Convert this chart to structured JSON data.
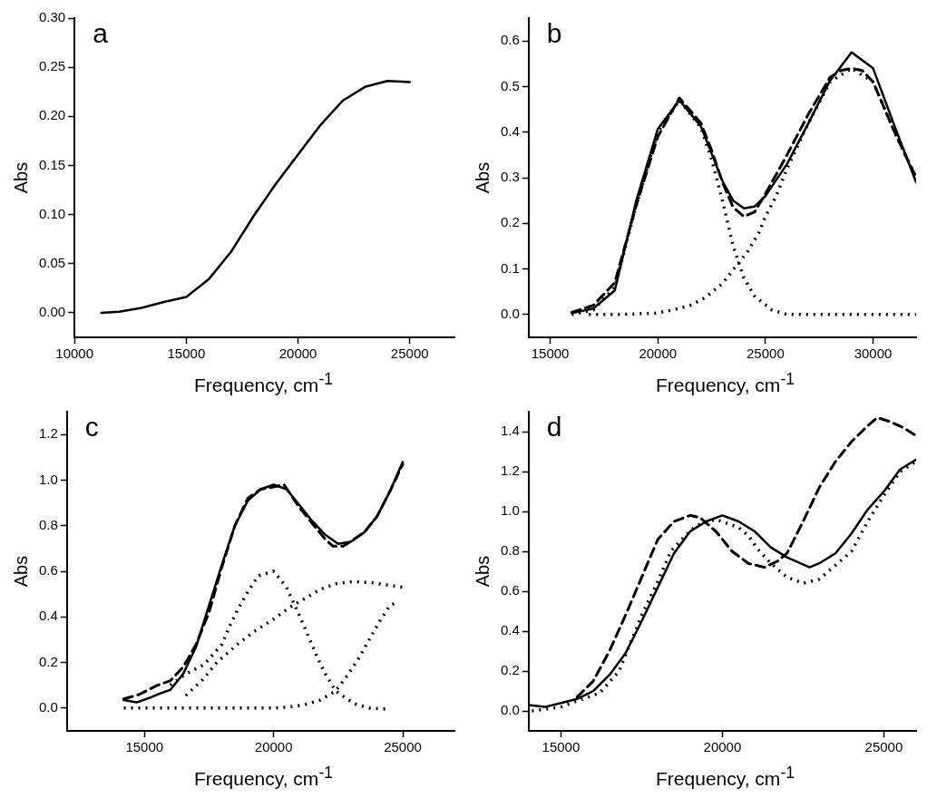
{
  "chart_data": [
    {
      "type": "line",
      "annotations": [
        "a"
      ],
      "xlabel": "Frequency, cm$^{-1}$",
      "ylabel": "Abs",
      "xlim": [
        10000,
        27000
      ],
      "xticks": [
        10000,
        15000,
        20000,
        25000
      ],
      "ylim": [
        -0.025,
        0.3
      ],
      "yticks": [
        {
          "value": 0,
          "label": "0.00"
        },
        0.05,
        {
          "value": 0.1,
          "label": "0.10"
        },
        0.15,
        {
          "value": 0.2,
          "label": "0.20"
        },
        0.25,
        {
          "value": 0.3,
          "label": "0.30"
        }
      ],
      "marker": "none",
      "series": [
        {
          "color": "#000000",
          "line_style": "solid",
          "x": [
            11200,
            12000,
            13000,
            14000,
            15000,
            16000,
            17000,
            18000,
            19000,
            20000,
            21000,
            22000,
            23000,
            24000,
            25000
          ],
          "values": [
            0.0,
            0.001,
            0.005,
            0.011,
            0.016,
            0.034,
            0.062,
            0.098,
            0.131,
            0.161,
            0.191,
            0.216,
            0.23,
            0.236,
            0.235
          ]
        }
      ]
    },
    {
      "type": "line",
      "annotations": [
        "b"
      ],
      "xlabel": "Frequency, cm$^{-1}$",
      "ylabel": "Abs",
      "xlim": [
        14000,
        32000
      ],
      "xticks": [
        15000,
        20000,
        25000,
        30000
      ],
      "ylim": [
        -0.05,
        0.65
      ],
      "yticks": [
        {
          "value": 0,
          "label": "0.0"
        },
        0.1,
        0.2,
        0.3,
        0.4,
        0.5,
        0.6
      ],
      "marker": "none",
      "series": [
        {
          "color": "#000000",
          "line_style": "solid",
          "x": [
            16000,
            17000,
            18000,
            19000,
            20000,
            21000,
            22000,
            22500,
            23000,
            23500,
            24000,
            24500,
            25000,
            26000,
            27000,
            28000,
            29000,
            30000,
            31000,
            32000
          ],
          "values": [
            0.003,
            0.013,
            0.053,
            0.25,
            0.407,
            0.47,
            0.413,
            0.353,
            0.293,
            0.25,
            0.233,
            0.237,
            0.26,
            0.33,
            0.42,
            0.513,
            0.575,
            0.54,
            0.413,
            0.29
          ]
        },
        {
          "color": "#000000",
          "line_style": "dashed",
          "x": [
            16000,
            17000,
            18000,
            19000,
            20000,
            21000,
            22000,
            22500,
            23000,
            23500,
            24000,
            24500,
            25000,
            26000,
            27000,
            28000,
            28500,
            29000,
            29500,
            30000,
            31000,
            32000
          ],
          "values": [
            0.005,
            0.02,
            0.07,
            0.24,
            0.39,
            0.475,
            0.42,
            0.36,
            0.29,
            0.235,
            0.215,
            0.225,
            0.265,
            0.35,
            0.44,
            0.52,
            0.535,
            0.54,
            0.535,
            0.51,
            0.4,
            0.3
          ]
        },
        {
          "color": "#000000",
          "line_style": "dotted",
          "x": [
            16000,
            17000,
            18000,
            19000,
            20000,
            21000,
            22000,
            22500,
            23000,
            23500,
            24000,
            24500,
            25300,
            26000,
            28000,
            30000,
            32000
          ],
          "values": [
            0.0,
            0.01,
            0.06,
            0.24,
            0.4,
            0.47,
            0.41,
            0.34,
            0.25,
            0.15,
            0.08,
            0.04,
            0.01,
            0.0,
            0.0,
            0.0,
            0.0
          ]
        },
        {
          "color": "#000000",
          "line_style": "dotted",
          "x": [
            16800,
            18000,
            19900,
            20700,
            21500,
            22200,
            23000,
            23700,
            24200,
            24700,
            25000,
            25500,
            26000,
            27000,
            28000,
            29000,
            30000,
            31000,
            32000
          ],
          "values": [
            0.0,
            0.0,
            0.003,
            0.01,
            0.02,
            0.037,
            0.068,
            0.11,
            0.14,
            0.18,
            0.215,
            0.26,
            0.32,
            0.42,
            0.51,
            0.54,
            0.51,
            0.4,
            0.3
          ]
        }
      ]
    },
    {
      "type": "line",
      "annotations": [
        "c"
      ],
      "xlabel": "Frequency, cm$^{-1}$",
      "ylabel": "Abs",
      "xlim": [
        12000,
        27000
      ],
      "xticks": [
        15000,
        20000,
        25000
      ],
      "ylim": [
        -0.1,
        1.3
      ],
      "yticks": [
        {
          "value": 0,
          "label": "0.0"
        },
        0.2,
        0.4,
        0.6,
        0.8,
        {
          "value": 1,
          "label": "1.0"
        },
        1.2
      ],
      "marker": "none",
      "series": [
        {
          "color": "#000000",
          "line_style": "solid",
          "x": [
            14200,
            14700,
            15200,
            15500,
            16000,
            16500,
            17000,
            17500,
            18000,
            18500,
            19000,
            19500,
            20000,
            20500,
            21000,
            21500,
            22000,
            22500,
            23000,
            23500,
            24000,
            24500,
            25000
          ],
          "values": [
            0.035,
            0.025,
            0.045,
            0.06,
            0.08,
            0.15,
            0.27,
            0.45,
            0.63,
            0.8,
            0.91,
            0.96,
            0.98,
            0.96,
            0.89,
            0.82,
            0.76,
            0.72,
            0.73,
            0.77,
            0.84,
            0.95,
            1.08
          ]
        },
        {
          "color": "#000000",
          "line_style": "dashed",
          "x": [
            14200,
            14800,
            15500,
            16000,
            16500,
            17000,
            17500,
            18000,
            18500,
            19000,
            19500,
            20000,
            20400,
            21000,
            21500,
            22000,
            22300,
            22700,
            23500,
            24000,
            24500,
            25000
          ],
          "values": [
            0.04,
            0.06,
            0.1,
            0.12,
            0.18,
            0.28,
            0.42,
            0.62,
            0.8,
            0.92,
            0.96,
            0.97,
            0.98,
            0.88,
            0.81,
            0.74,
            0.71,
            0.71,
            0.77,
            0.84,
            0.95,
            1.07
          ]
        },
        {
          "color": "#000000",
          "line_style": "dotted",
          "x": [
            16000,
            16600,
            17300,
            18000,
            18300,
            18600,
            19000,
            19400,
            20000,
            20500,
            21100,
            21400,
            21700,
            22000,
            22400,
            23100,
            23700,
            24400
          ],
          "values": [
            0.1,
            0.15,
            0.19,
            0.28,
            0.36,
            0.43,
            0.51,
            0.58,
            0.6,
            0.53,
            0.38,
            0.3,
            0.22,
            0.15,
            0.075,
            0.02,
            0.0,
            -0.005
          ]
        },
        {
          "color": "#000000",
          "line_style": "dotted",
          "x": [
            16600,
            17300,
            17800,
            18600,
            19300,
            20000,
            20600,
            21200,
            21800,
            22400,
            23100,
            23800,
            24400,
            25000
          ],
          "values": [
            0.055,
            0.13,
            0.2,
            0.28,
            0.34,
            0.39,
            0.44,
            0.48,
            0.52,
            0.545,
            0.555,
            0.55,
            0.54,
            0.53
          ]
        },
        {
          "color": "#000000",
          "line_style": "dotted",
          "x": [
            14200,
            15400,
            16600,
            17800,
            19000,
            20000,
            20600,
            21200,
            21800,
            22400,
            22900,
            23300,
            23700,
            24100,
            24500,
            24700
          ],
          "values": [
            0.0,
            0.0,
            0.0,
            0.0,
            0.0,
            0.0,
            0.005,
            0.015,
            0.035,
            0.075,
            0.15,
            0.22,
            0.3,
            0.38,
            0.45,
            0.46
          ]
        }
      ]
    },
    {
      "type": "line",
      "annotations": [
        "d"
      ],
      "xlabel": "Frequency, cm$^{-1}$",
      "ylabel": "Abs",
      "xlim": [
        14000,
        26000
      ],
      "xticks": [
        15000,
        20000,
        25000
      ],
      "ylim": [
        -0.1,
        1.5
      ],
      "yticks": [
        {
          "value": 0,
          "label": "0.0"
        },
        0.2,
        0.4,
        0.6,
        0.8,
        {
          "value": 1,
          "label": "1.0"
        },
        1.2,
        1.4
      ],
      "marker": "none",
      "series": [
        {
          "color": "#000000",
          "line_style": "solid",
          "x": [
            14000,
            14500,
            15000,
            15500,
            16000,
            16500,
            17000,
            17500,
            18000,
            18500,
            19000,
            19500,
            20000,
            20500,
            21000,
            21500,
            22000,
            22700,
            23000,
            23500,
            24000,
            24500,
            25000,
            25500,
            26000
          ],
          "values": [
            0.03,
            0.02,
            0.04,
            0.06,
            0.1,
            0.18,
            0.29,
            0.45,
            0.62,
            0.79,
            0.9,
            0.95,
            0.98,
            0.95,
            0.9,
            0.82,
            0.77,
            0.72,
            0.74,
            0.79,
            0.89,
            1.01,
            1.1,
            1.21,
            1.26
          ]
        },
        {
          "color": "#000000",
          "line_style": "dashed",
          "x": [
            15500,
            16000,
            16500,
            17000,
            17500,
            18000,
            18500,
            19000,
            19300,
            19800,
            20300,
            20800,
            21300,
            21700,
            22000,
            22500,
            23000,
            23500,
            24000,
            24500,
            24800,
            25200,
            25600,
            26000
          ],
          "values": [
            0.07,
            0.15,
            0.3,
            0.48,
            0.67,
            0.86,
            0.95,
            0.98,
            0.97,
            0.9,
            0.8,
            0.74,
            0.72,
            0.75,
            0.79,
            0.95,
            1.12,
            1.25,
            1.35,
            1.43,
            1.47,
            1.45,
            1.42,
            1.38
          ]
        },
        {
          "color": "#000000",
          "line_style": "dotted",
          "x": [
            14100,
            15000,
            15500,
            16200,
            16800,
            17500,
            18000,
            18400,
            18800,
            19200,
            19800,
            20500,
            20800,
            21100,
            21500,
            22000,
            22500,
            23000,
            23500,
            24000,
            24500,
            25000,
            25500,
            26000
          ],
          "values": [
            0.0,
            0.02,
            0.05,
            0.09,
            0.2,
            0.48,
            0.65,
            0.8,
            0.87,
            0.93,
            0.96,
            0.92,
            0.88,
            0.81,
            0.74,
            0.67,
            0.64,
            0.66,
            0.73,
            0.8,
            0.95,
            1.08,
            1.2,
            1.25
          ]
        }
      ]
    }
  ]
}
